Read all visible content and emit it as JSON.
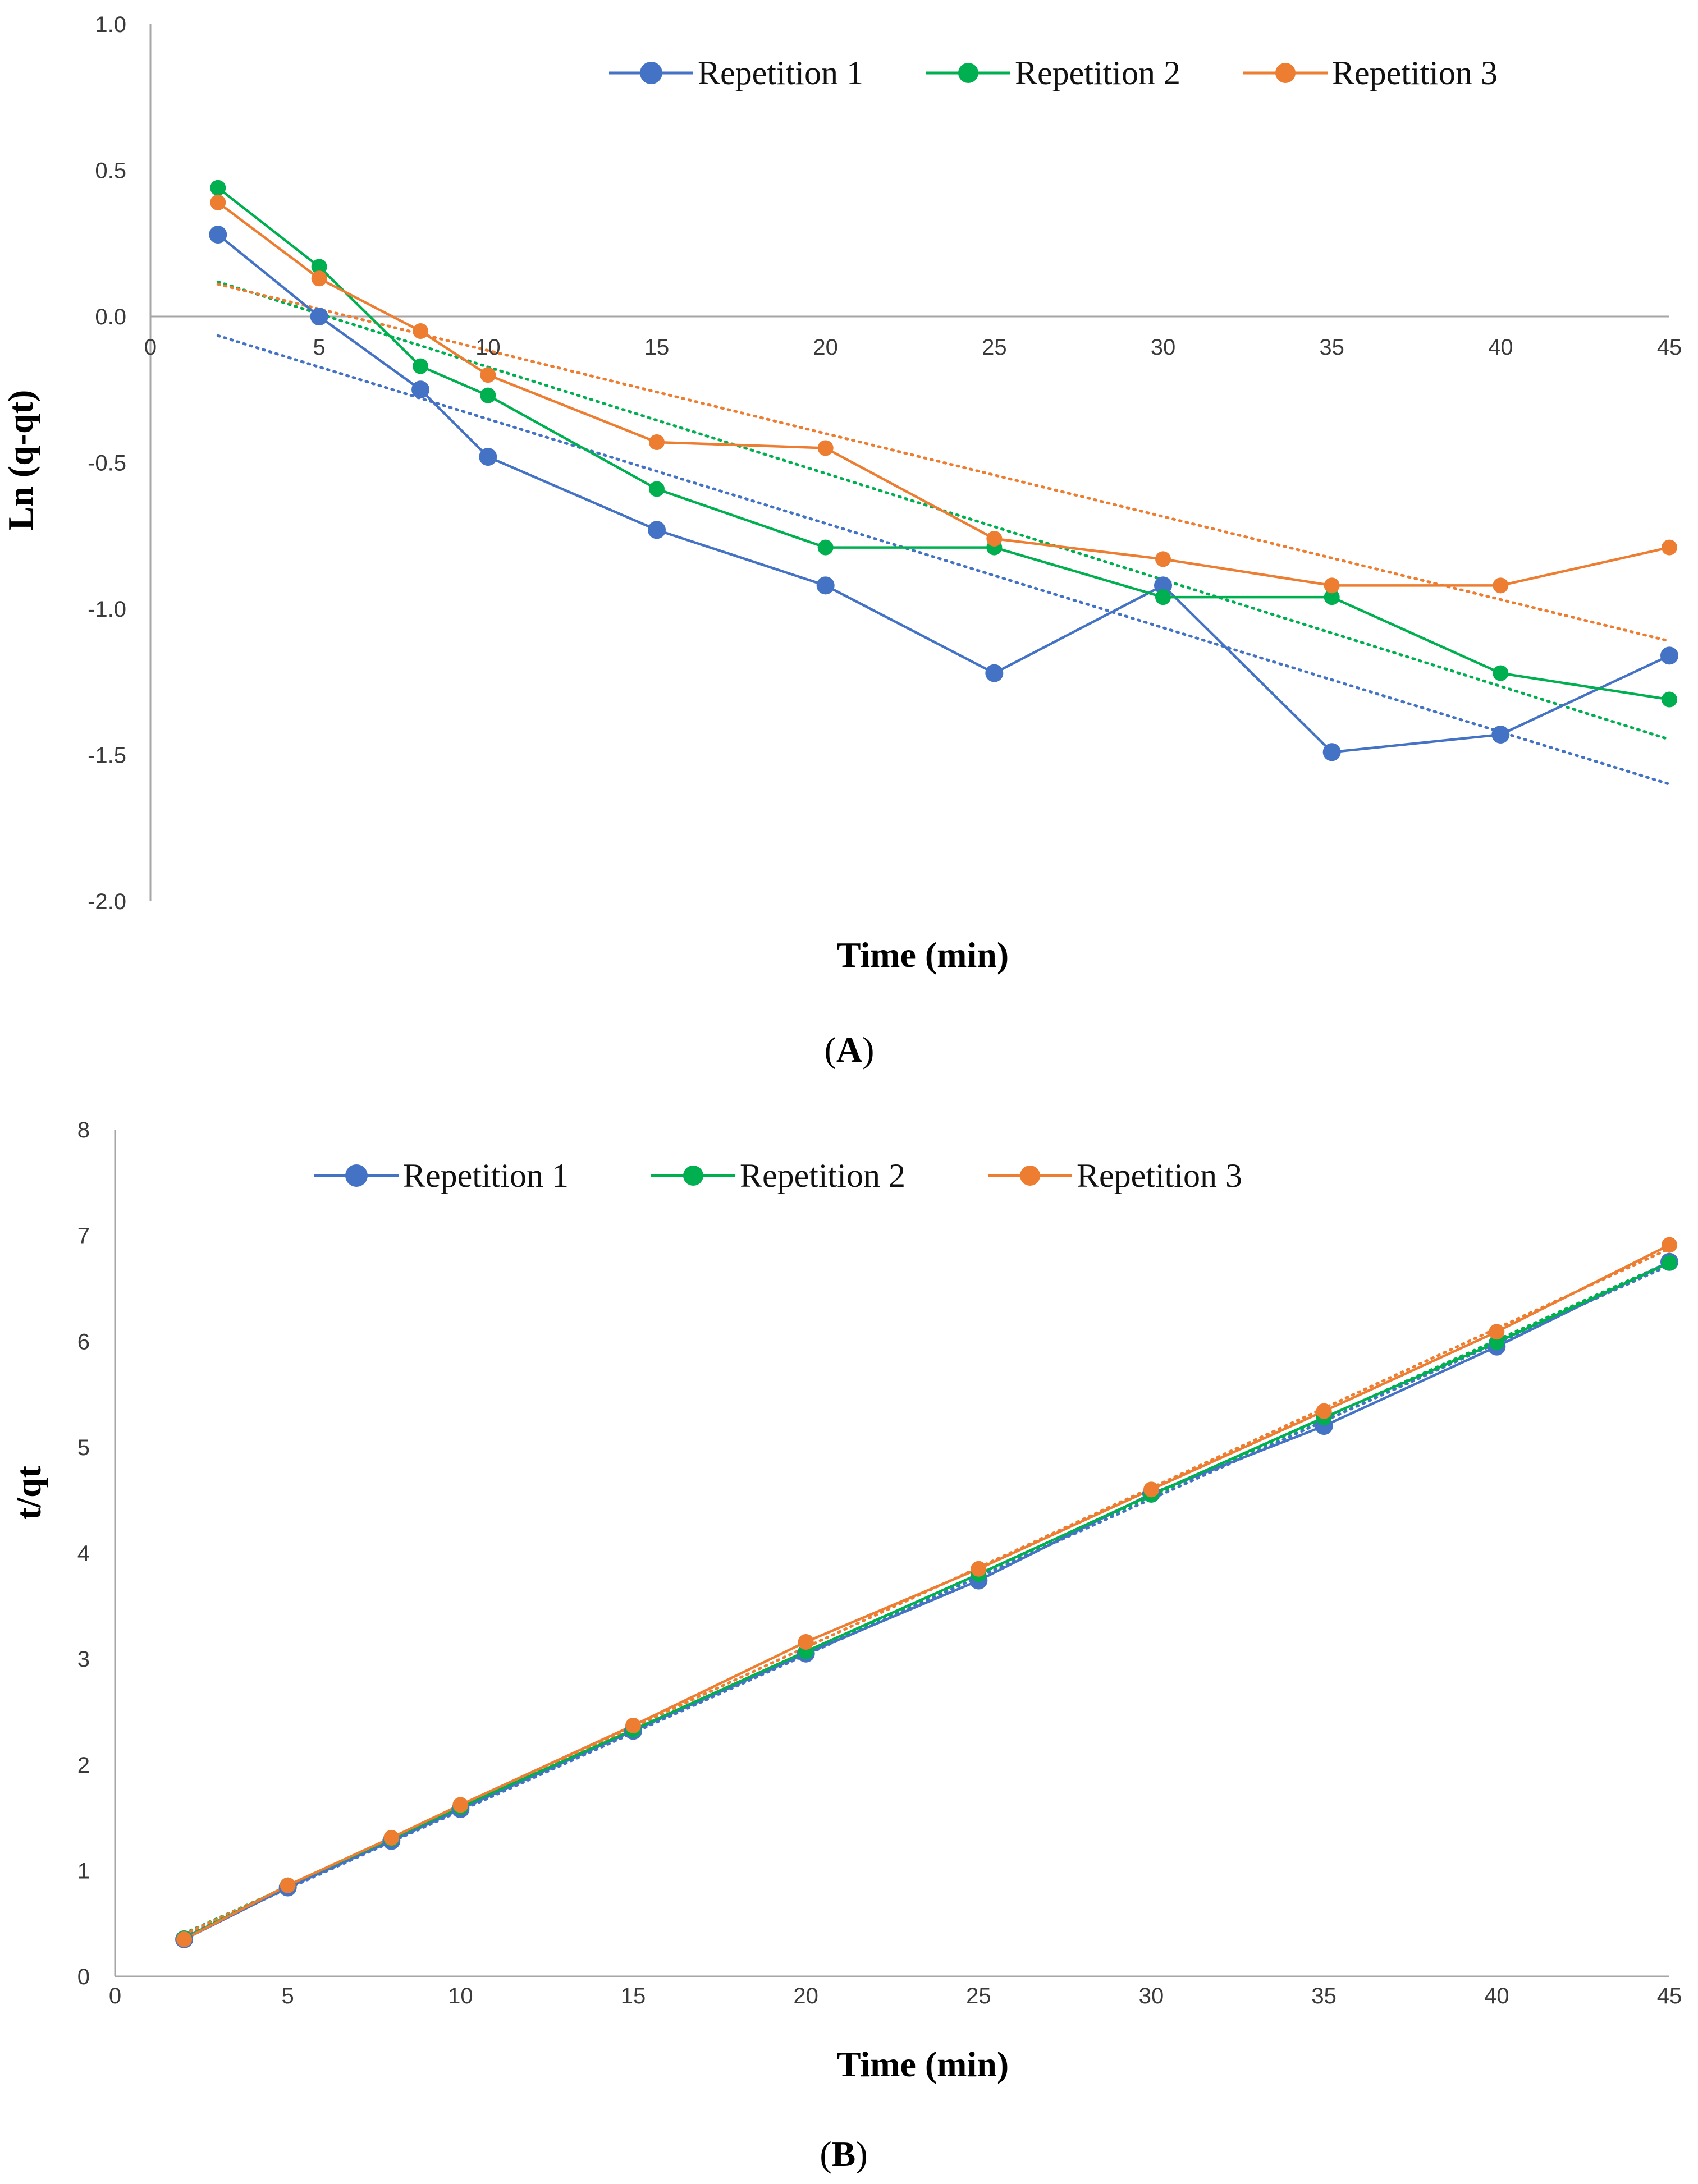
{
  "colors": {
    "series1": "#4472C4",
    "series2": "#00B050",
    "series3": "#ED7D31",
    "axis": "#A6A6A6"
  },
  "chart_data": [
    {
      "panel": "A",
      "type": "line",
      "xlabel": "Time (min)",
      "ylabel": "Ln (q-qt)",
      "xlim": [
        0,
        45
      ],
      "ylim": [
        -2.0,
        1.0
      ],
      "x_ticks": [
        "0",
        "5",
        "10",
        "15",
        "20",
        "25",
        "30",
        "35",
        "40",
        "45"
      ],
      "y_ticks": [
        "1.0",
        "0.5",
        "0.0",
        "-0.5",
        "-1.0",
        "-1.5",
        "-2.0"
      ],
      "legend_position": "top-right",
      "trendlines": "dotted linear fit per series",
      "x": [
        2,
        5,
        8,
        10,
        15,
        20,
        25,
        30,
        35,
        40,
        45
      ],
      "series": [
        {
          "name": "Repetition 1",
          "values": [
            0.28,
            0.0,
            -0.25,
            -0.48,
            -0.73,
            -0.92,
            -1.22,
            -0.92,
            -1.49,
            -1.43,
            -1.16
          ]
        },
        {
          "name": "Repetition 2",
          "values": [
            0.44,
            0.17,
            -0.17,
            -0.27,
            -0.59,
            -0.79,
            -0.79,
            -0.96,
            -0.96,
            -1.22,
            -1.31
          ]
        },
        {
          "name": "Repetition 3",
          "values": [
            0.39,
            0.13,
            -0.05,
            -0.2,
            -0.43,
            -0.45,
            -0.76,
            -0.83,
            -0.92,
            -0.92,
            -0.79
          ]
        }
      ]
    },
    {
      "panel": "B",
      "type": "line",
      "xlabel": "Time (min)",
      "ylabel": "t/qt",
      "xlim": [
        0,
        45
      ],
      "ylim": [
        0,
        8
      ],
      "x_ticks": [
        "0",
        "5",
        "10",
        "15",
        "20",
        "25",
        "30",
        "35",
        "40",
        "45"
      ],
      "y_ticks": [
        "0",
        "1",
        "2",
        "3",
        "4",
        "5",
        "6",
        "7",
        "8"
      ],
      "legend_position": "top-left",
      "trendlines": "dotted linear fit per series",
      "x": [
        2,
        5,
        8,
        10,
        15,
        20,
        25,
        30,
        35,
        40,
        45
      ],
      "series": [
        {
          "name": "Repetition 1",
          "values": [
            0.35,
            0.84,
            1.28,
            1.58,
            2.32,
            3.05,
            3.74,
            4.56,
            5.2,
            5.95,
            6.75
          ]
        },
        {
          "name": "Repetition 2",
          "values": [
            0.36,
            0.86,
            1.3,
            1.6,
            2.33,
            3.07,
            3.8,
            4.55,
            5.28,
            5.99,
            6.74
          ]
        },
        {
          "name": "Repetition 3",
          "values": [
            0.35,
            0.86,
            1.31,
            1.62,
            2.37,
            3.16,
            3.85,
            4.6,
            5.34,
            6.09,
            6.91
          ]
        }
      ]
    }
  ]
}
